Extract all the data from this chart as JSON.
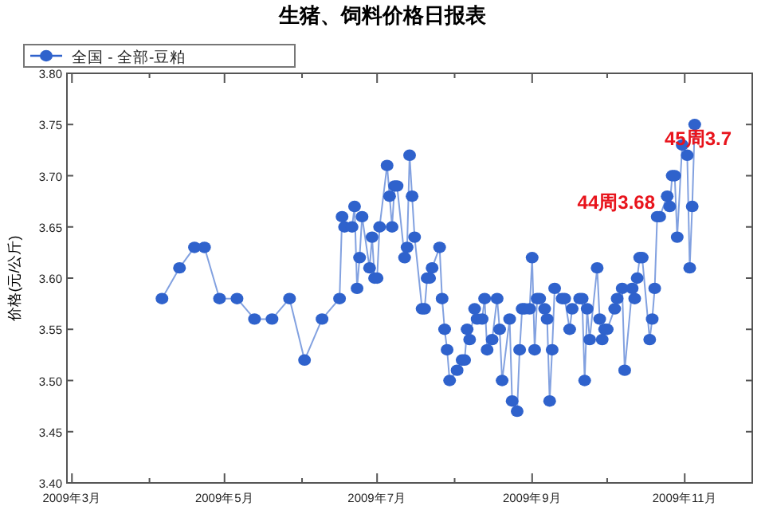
{
  "chart_data": {
    "type": "line",
    "title": "生猪、饲料价格日报表",
    "ylabel": "价格(元/公斤)",
    "legend": "top left",
    "marker": "circle",
    "line_style": "solid",
    "annotations": [
      "45周3.7",
      "44周3.68"
    ],
    "xlim": [
      "2009-02-27",
      "2009-11-28"
    ],
    "ylim": [
      3.4,
      3.8
    ],
    "xticks": [
      {
        "value": "2009-03-01",
        "label": "2009年3月"
      },
      {
        "value": "2009-04-01",
        "label": null
      },
      {
        "value": "2009-05-01",
        "label": "2009年5月"
      },
      {
        "value": "2009-06-01",
        "label": null
      },
      {
        "value": "2009-07-01",
        "label": "2009年7月"
      },
      {
        "value": "2009-08-01",
        "label": null
      },
      {
        "value": "2009-09-01",
        "label": "2009年9月"
      },
      {
        "value": "2009-10-01",
        "label": null
      },
      {
        "value": "2009-11-01",
        "label": "2009年11月"
      }
    ],
    "yticks": [
      {
        "value": 3.4,
        "label": "3.40"
      },
      {
        "value": 3.45,
        "label": "3.45"
      },
      {
        "value": 3.5,
        "label": "3.50"
      },
      {
        "value": 3.55,
        "label": "3.55"
      },
      {
        "value": 3.6,
        "label": "3.60"
      },
      {
        "value": 3.65,
        "label": "3.65"
      },
      {
        "value": 3.7,
        "label": "3.70"
      },
      {
        "value": 3.75,
        "label": "3.75"
      },
      {
        "value": 3.8,
        "label": "3.80"
      }
    ],
    "x": [
      "2009-04-06",
      "2009-04-13",
      "2009-04-19",
      "2009-04-23",
      "2009-04-29",
      "2009-05-06",
      "2009-05-13",
      "2009-05-20",
      "2009-05-27",
      "2009-06-02",
      "2009-06-09",
      "2009-06-16",
      "2009-06-17",
      "2009-06-18",
      "2009-06-21",
      "2009-06-22",
      "2009-06-23",
      "2009-06-24",
      "2009-06-25",
      "2009-06-28",
      "2009-06-29",
      "2009-06-30",
      "2009-07-01",
      "2009-07-02",
      "2009-07-05",
      "2009-07-06",
      "2009-07-07",
      "2009-07-08",
      "2009-07-09",
      "2009-07-12",
      "2009-07-13",
      "2009-07-14",
      "2009-07-15",
      "2009-07-16",
      "2009-07-19",
      "2009-07-20",
      "2009-07-21",
      "2009-07-22",
      "2009-07-23",
      "2009-07-26",
      "2009-07-27",
      "2009-07-28",
      "2009-07-29",
      "2009-07-30",
      "2009-08-02",
      "2009-08-04",
      "2009-08-05",
      "2009-08-06",
      "2009-08-07",
      "2009-08-09",
      "2009-08-10",
      "2009-08-12",
      "2009-08-13",
      "2009-08-14",
      "2009-08-16",
      "2009-08-18",
      "2009-08-19",
      "2009-08-20",
      "2009-08-23",
      "2009-08-24",
      "2009-08-26",
      "2009-08-27",
      "2009-08-28",
      "2009-08-29",
      "2009-08-31",
      "2009-09-01",
      "2009-09-02",
      "2009-09-03",
      "2009-09-04",
      "2009-09-06",
      "2009-09-07",
      "2009-09-08",
      "2009-09-09",
      "2009-09-10",
      "2009-09-13",
      "2009-09-14",
      "2009-09-16",
      "2009-09-17",
      "2009-09-20",
      "2009-09-21",
      "2009-09-22",
      "2009-09-23",
      "2009-09-24",
      "2009-09-27",
      "2009-09-28",
      "2009-09-29",
      "2009-09-30",
      "2009-10-01",
      "2009-10-04",
      "2009-10-05",
      "2009-10-07",
      "2009-10-08",
      "2009-10-11",
      "2009-10-12",
      "2009-10-13",
      "2009-10-14",
      "2009-10-15",
      "2009-10-18",
      "2009-10-19",
      "2009-10-20",
      "2009-10-21",
      "2009-10-22",
      "2009-10-25",
      "2009-10-26",
      "2009-10-27",
      "2009-10-28",
      "2009-10-29",
      "2009-10-31",
      "2009-11-02",
      "2009-11-03",
      "2009-11-04",
      "2009-11-05"
    ],
    "series": [
      {
        "name": "全国 - 全部-豆粕",
        "color": "#2f62cc",
        "values": [
          3.58,
          3.61,
          3.63,
          3.63,
          3.58,
          3.58,
          3.56,
          3.56,
          3.58,
          3.52,
          3.56,
          3.58,
          3.66,
          3.65,
          3.65,
          3.67,
          3.59,
          3.62,
          3.66,
          3.61,
          3.64,
          3.6,
          3.6,
          3.65,
          3.71,
          3.68,
          3.65,
          3.69,
          3.69,
          3.62,
          3.63,
          3.72,
          3.68,
          3.64,
          3.57,
          3.57,
          3.6,
          3.6,
          3.61,
          3.63,
          3.58,
          3.55,
          3.53,
          3.5,
          3.51,
          3.52,
          3.52,
          3.55,
          3.54,
          3.57,
          3.56,
          3.56,
          3.58,
          3.53,
          3.54,
          3.58,
          3.55,
          3.5,
          3.56,
          3.48,
          3.47,
          3.53,
          3.57,
          3.57,
          3.57,
          3.62,
          3.53,
          3.58,
          3.58,
          3.57,
          3.56,
          3.48,
          3.53,
          3.59,
          3.58,
          3.58,
          3.55,
          3.57,
          3.58,
          3.58,
          3.5,
          3.57,
          3.54,
          3.61,
          3.56,
          3.54,
          3.55,
          3.55,
          3.57,
          3.58,
          3.59,
          3.51,
          3.59,
          3.58,
          3.6,
          3.62,
          3.62,
          3.54,
          3.56,
          3.59,
          3.66,
          3.66,
          3.68,
          3.67,
          3.7,
          3.7,
          3.64,
          3.73,
          3.72,
          3.61,
          3.67,
          3.75
        ]
      }
    ]
  }
}
